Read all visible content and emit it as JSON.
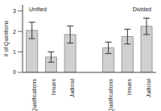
{
  "chart_data": {
    "type": "bar",
    "y_label": "# of Questions",
    "categories": [
      "Qualifications",
      "Issues",
      "Judicial",
      null,
      "Qualifications",
      "Issues",
      "Judicial"
    ],
    "values": [
      2.05,
      0.75,
      1.85,
      null,
      1.2,
      1.75,
      2.25
    ],
    "error": [
      0.4,
      0.25,
      0.42,
      null,
      0.28,
      0.36,
      0.4
    ],
    "color": "#d0d0d0",
    "ylim": [
      0,
      3.3
    ],
    "yticks": [
      0,
      1,
      2,
      3
    ],
    "grid": false,
    "annotations": [
      "Unified",
      "Divided"
    ]
  }
}
